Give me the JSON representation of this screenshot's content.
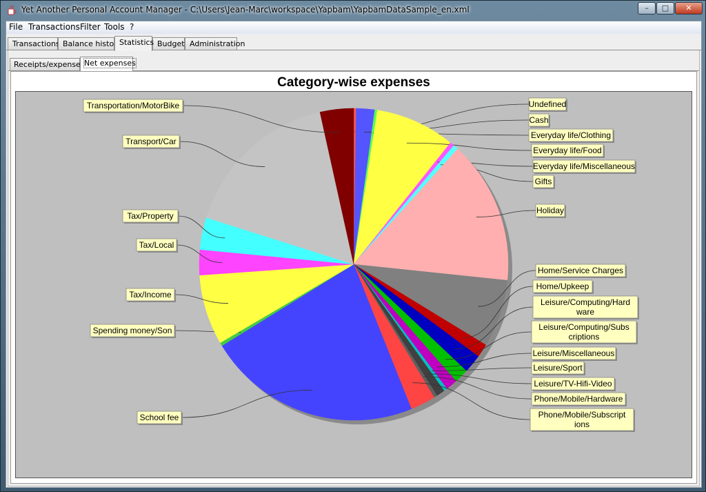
{
  "window": {
    "title": "Yet Another Personal Account Manager - C:\\Users\\Jean-Marc\\workspace\\Yapbam\\YapbamDataSample_en.xml",
    "minimize_glyph": "–",
    "maximize_glyph": "□",
    "close_glyph": "✕"
  },
  "menu": {
    "items": [
      "File",
      "Transactions",
      "Filter",
      "Tools",
      "?"
    ]
  },
  "tabs": [
    "Transactions",
    "Balance history",
    "Statistics",
    "Budget",
    "Administration"
  ],
  "active_tab": "Statistics",
  "subtabs": [
    "Receipts/expenses",
    "Net expenses"
  ],
  "active_subtab": "Net expenses",
  "chart_data": {
    "type": "pie",
    "title": "Category-wise expenses",
    "slices": [
      {
        "label": "Undefined",
        "value": 0.3,
        "color": "#ff5555"
      },
      {
        "label": "Cash",
        "value": 2.2,
        "color": "#5555ff"
      },
      {
        "label": "Everyday life/Clothing",
        "value": 0.3,
        "color": "#55ff55"
      },
      {
        "label": "Everyday life/Food",
        "value": 9.5,
        "color": "#ffff44"
      },
      {
        "label": "Everyday life/Miscellaneous",
        "value": 0.5,
        "color": "#ff55ff"
      },
      {
        "label": "Gifts",
        "value": 0.6,
        "color": "#55ffff"
      },
      {
        "label": "Holiday",
        "value": 17.0,
        "color": "#ffafaf"
      },
      {
        "label": "Home/Service Charges",
        "value": 8.0,
        "color": "#808080"
      },
      {
        "label": "Home/Upkeep",
        "value": 1.6,
        "color": "#c00000"
      },
      {
        "label": "Leisure/Computing/Hardware",
        "value": 2.2,
        "color": "#0000c0"
      },
      {
        "label": "Leisure/Computing/Subscriptions",
        "value": 1.7,
        "color": "#00c000"
      },
      {
        "label": "Leisure/Miscellaneous",
        "value": 1.4,
        "color": "#c000c0"
      },
      {
        "label": "Leisure/Sport",
        "value": 0.4,
        "color": "#00c0c0"
      },
      {
        "label": "Leisure/TV-Hifi-Video",
        "value": 1.0,
        "color": "#404040"
      },
      {
        "label": "Phone/Mobile/Hardware",
        "value": 0.4,
        "color": "#606060"
      },
      {
        "label": "Phone/Mobile/Subscriptions",
        "value": 3.0,
        "color": "#ff4444"
      },
      {
        "label": "School fee",
        "value": 25.5,
        "color": "#4444ff"
      },
      {
        "label": "Spending money/Son",
        "value": 0.4,
        "color": "#44cc44"
      },
      {
        "label": "Tax/Income",
        "value": 8.3,
        "color": "#ffff44"
      },
      {
        "label": "Tax/Local",
        "value": 3.0,
        "color": "#ff44ff"
      },
      {
        "label": "Tax/Property",
        "value": 3.8,
        "color": "#44ffff"
      },
      {
        "label": "Transport/Car",
        "value": 19.0,
        "color": "#c4c4c4"
      },
      {
        "label": "Transportation/MotorBike",
        "value": 4.0,
        "color": "#800000"
      }
    ]
  }
}
